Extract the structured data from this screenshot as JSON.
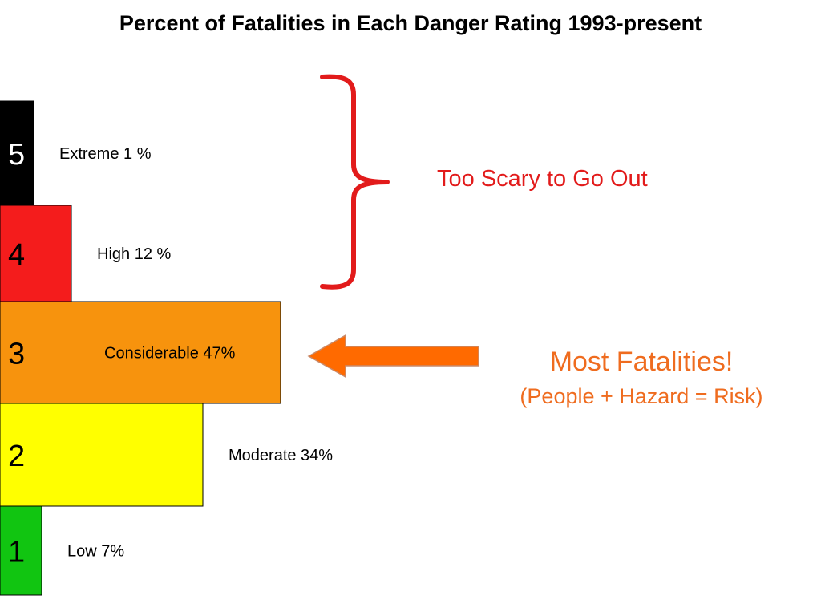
{
  "title": "Percent of Fatalities in Each Danger Rating 1993-present",
  "chart_data": {
    "type": "bar",
    "orientation": "horizontal",
    "title": "Percent of Fatalities in Each Danger Rating 1993-present",
    "categories": [
      "5",
      "4",
      "3",
      "2",
      "1"
    ],
    "values": [
      1,
      12,
      47,
      34,
      7
    ],
    "unit": "%",
    "labels": [
      "Extreme 1 %",
      "High 12 %",
      "Considerable 47%",
      "Moderate 34%",
      "Low 7%"
    ],
    "colors": [
      "#000000",
      "#f41c1c",
      "#f7930d",
      "#ffff00",
      "#11c511"
    ],
    "number_colors": [
      "#ffffff",
      "#000000",
      "#000000",
      "#000000",
      "#000000"
    ],
    "xlabel": "",
    "ylabel": "",
    "grid": false,
    "legend": "none"
  },
  "callouts": {
    "too_scary": "Too Scary to Go Out",
    "most_fatalities": "Most Fatalities!",
    "formula": "(People + Hazard = Risk)"
  },
  "colors": {
    "brace": "#e21b1b",
    "scary_text": "#e21b1b",
    "arrow": "#ff6a00",
    "arrow_stroke": "#c98a6a",
    "most_text": "#ef6c1f"
  },
  "icons": {
    "brace": "right-curly-brace-icon",
    "arrow": "left-arrow-icon"
  }
}
